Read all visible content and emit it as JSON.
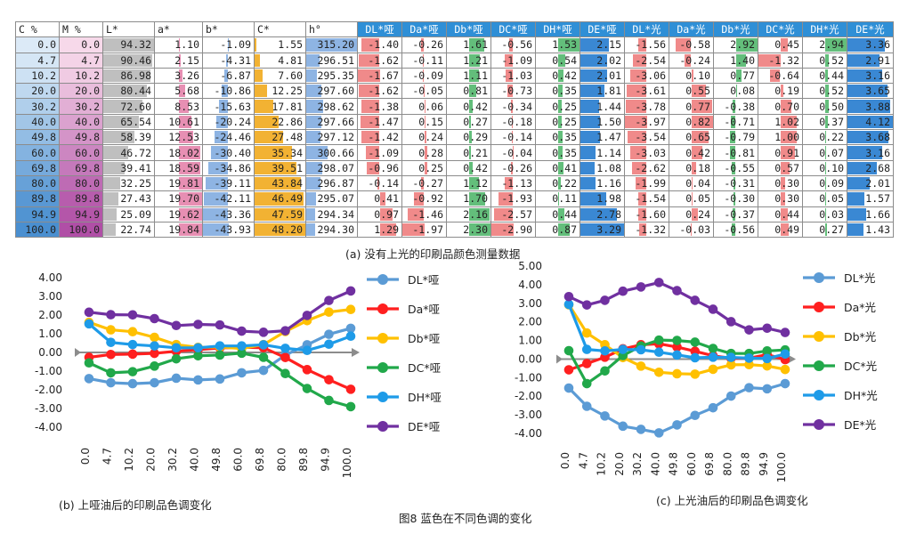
{
  "table": {
    "headers": [
      "C %",
      "M %",
      "L*",
      "a*",
      "b*",
      "C*",
      "h°",
      "DL*哑",
      "Da*哑",
      "Db*哑",
      "DC*哑",
      "DH*哑",
      "DE*哑",
      "DL*光",
      "Da*光",
      "Db*光",
      "DC*光",
      "DH*光",
      "DE*光"
    ],
    "rows": [
      [
        "0.0",
        "0.0",
        "94.32",
        "1.10",
        "-1.09",
        "1.55",
        "315.20",
        "-1.40",
        "-0.26",
        "1.61",
        "-0.56",
        "1.53",
        "2.15",
        "-1.56",
        "-0.58",
        "2.92",
        "0.45",
        "2.94",
        "3.36"
      ],
      [
        "4.7",
        "4.7",
        "90.46",
        "2.15",
        "-4.31",
        "4.81",
        "296.51",
        "-1.62",
        "-0.11",
        "1.21",
        "-1.09",
        "0.54",
        "2.02",
        "-2.54",
        "-0.24",
        "1.40",
        "-1.32",
        "0.52",
        "2.91"
      ],
      [
        "10.2",
        "10.2",
        "86.98",
        "3.26",
        "-6.87",
        "7.60",
        "295.35",
        "-1.67",
        "-0.09",
        "1.11",
        "-1.03",
        "0.42",
        "2.01",
        "-3.06",
        "0.10",
        "0.77",
        "-0.64",
        "0.44",
        "3.16"
      ],
      [
        "20.0",
        "20.0",
        "80.44",
        "5.68",
        "-10.86",
        "12.25",
        "297.60",
        "-1.62",
        "-0.05",
        "0.81",
        "-0.73",
        "0.35",
        "1.81",
        "-3.61",
        "0.55",
        "0.08",
        "0.19",
        "0.52",
        "3.65"
      ],
      [
        "30.2",
        "30.2",
        "72.60",
        "8.53",
        "-15.63",
        "17.81",
        "298.62",
        "-1.38",
        "0.06",
        "0.42",
        "-0.34",
        "0.25",
        "1.44",
        "-3.78",
        "0.77",
        "-0.38",
        "0.70",
        "0.50",
        "3.88"
      ],
      [
        "40.0",
        "40.0",
        "65.54",
        "10.61",
        "-20.24",
        "22.86",
        "297.66",
        "-1.47",
        "0.15",
        "0.27",
        "-0.18",
        "0.25",
        "1.50",
        "-3.97",
        "0.82",
        "-0.71",
        "1.02",
        "0.37",
        "4.12"
      ],
      [
        "49.8",
        "49.8",
        "58.39",
        "12.53",
        "-24.46",
        "27.48",
        "297.12",
        "-1.42",
        "0.24",
        "0.29",
        "-0.14",
        "0.35",
        "1.47",
        "-3.54",
        "0.65",
        "-0.79",
        "1.00",
        "0.22",
        "3.68"
      ],
      [
        "60.0",
        "60.0",
        "46.72",
        "18.02",
        "-30.40",
        "35.34",
        "300.66",
        "-1.09",
        "0.28",
        "0.21",
        "-0.04",
        "0.35",
        "1.14",
        "-3.03",
        "0.42",
        "-0.81",
        "0.91",
        "0.07",
        "3.16"
      ],
      [
        "69.8",
        "69.8",
        "39.41",
        "18.59",
        "-34.86",
        "39.51",
        "298.07",
        "-0.96",
        "0.25",
        "0.42",
        "-0.26",
        "0.41",
        "1.08",
        "-2.62",
        "0.18",
        "-0.55",
        "0.57",
        "0.10",
        "2.68"
      ],
      [
        "80.0",
        "80.0",
        "32.25",
        "19.81",
        "-39.11",
        "43.84",
        "296.87",
        "-0.14",
        "-0.27",
        "1.12",
        "-1.13",
        "0.22",
        "1.16",
        "-1.99",
        "0.04",
        "-0.31",
        "0.30",
        "0.09",
        "2.01"
      ],
      [
        "89.8",
        "89.8",
        "27.43",
        "19.70",
        "-42.11",
        "46.49",
        "295.07",
        "0.41",
        "-0.92",
        "1.70",
        "-1.93",
        "0.11",
        "1.98",
        "-1.54",
        "0.05",
        "-0.30",
        "0.30",
        "0.05",
        "1.57"
      ],
      [
        "94.9",
        "94.9",
        "25.09",
        "19.62",
        "-43.36",
        "47.59",
        "294.34",
        "0.97",
        "-1.46",
        "2.16",
        "-2.57",
        "0.44",
        "2.78",
        "-1.60",
        "0.24",
        "-0.37",
        "0.44",
        "0.03",
        "1.66"
      ],
      [
        "100.0",
        "100.0",
        "22.74",
        "19.84",
        "-43.93",
        "48.20",
        "294.30",
        "1.29",
        "-1.97",
        "2.30",
        "-2.90",
        "0.87",
        "3.29",
        "-1.32",
        "-0.03",
        "-0.56",
        "0.49",
        "0.27",
        "1.43"
      ]
    ]
  },
  "captions": {
    "table": "(a) 没有上光的印刷品颜色测量数据",
    "chart_b": "(b) 上哑油后的印刷品色调变化",
    "chart_c": "(c) 上光油后的印刷品色调变化",
    "figure": "图8 蓝色在不同色调的变化"
  },
  "colors": {
    "header_blue": "#2f8fd6",
    "bar_pink": "#e78fb3",
    "bar_gray": "#bfbfbf",
    "bar_blue": "#8eb4e3",
    "bar_orange": "#f2b233",
    "bar_red": "#f08a8a",
    "bar_green": "#63be7b",
    "bar_dblue": "#3a88d3",
    "cell_blue_light": "#dceaf7",
    "cell_blue_dark": "#4a8fd0",
    "cell_pink_light": "#f7d9ea",
    "cell_pink_dark": "#b04fa6",
    "DL": "#5b9bd5",
    "Da": "#ff1f1f",
    "Db": "#ffc000",
    "DC": "#21a84a",
    "DH": "#1e9be8",
    "DE": "#7030a0"
  },
  "chart_data": [
    {
      "type": "line",
      "x": [
        "0.0",
        "4.7",
        "10.2",
        "20.0",
        "30.2",
        "40.0",
        "49.8",
        "60.0",
        "69.8",
        "80.0",
        "89.8",
        "94.9",
        "100.0"
      ],
      "ylim": [
        -4,
        4
      ],
      "yticks": [
        -4,
        -3,
        -2,
        -1,
        0,
        1,
        2,
        3,
        4
      ],
      "ytick_labels": [
        "-4.00",
        "-3.00",
        "-2.00",
        "-1.00",
        "0.00",
        "1.00",
        "2.00",
        "3.00",
        "4.00"
      ],
      "legend_position": "right",
      "series": [
        {
          "name": "DL*哑",
          "color": "#5b9bd5",
          "values": [
            -1.4,
            -1.62,
            -1.67,
            -1.62,
            -1.38,
            -1.47,
            -1.42,
            -1.09,
            -0.96,
            -0.14,
            0.41,
            0.97,
            1.29
          ]
        },
        {
          "name": "Da*哑",
          "color": "#ff1f1f",
          "values": [
            -0.26,
            -0.11,
            -0.09,
            -0.05,
            0.06,
            0.15,
            0.24,
            0.28,
            0.25,
            -0.27,
            -0.92,
            -1.46,
            -1.97
          ]
        },
        {
          "name": "Db*哑",
          "color": "#ffc000",
          "values": [
            1.61,
            1.21,
            1.11,
            0.81,
            0.42,
            0.27,
            0.29,
            0.21,
            0.42,
            1.12,
            1.7,
            2.16,
            2.3
          ]
        },
        {
          "name": "DC*哑",
          "color": "#21a84a",
          "values": [
            -0.56,
            -1.09,
            -1.03,
            -0.73,
            -0.34,
            -0.18,
            -0.14,
            -0.04,
            -0.26,
            -1.13,
            -1.93,
            -2.57,
            -2.9
          ]
        },
        {
          "name": "DH*哑",
          "color": "#1e9be8",
          "values": [
            1.53,
            0.54,
            0.42,
            0.35,
            0.25,
            0.25,
            0.35,
            0.35,
            0.41,
            0.22,
            0.11,
            0.44,
            0.87
          ]
        },
        {
          "name": "DE*哑",
          "color": "#7030a0",
          "values": [
            2.15,
            2.02,
            2.01,
            1.81,
            1.44,
            1.5,
            1.47,
            1.14,
            1.08,
            1.16,
            1.98,
            2.78,
            3.29
          ]
        }
      ]
    },
    {
      "type": "line",
      "x": [
        "0.0",
        "4.7",
        "10.2",
        "20.0",
        "30.2",
        "40.0",
        "49.8",
        "60.0",
        "69.8",
        "80.0",
        "89.8",
        "94.9",
        "100.0"
      ],
      "ylim": [
        -4,
        5
      ],
      "yticks": [
        -4,
        -3,
        -2,
        -1,
        0,
        1,
        2,
        3,
        4,
        5
      ],
      "ytick_labels": [
        "-4.00",
        "-3.00",
        "-2.00",
        "-1.00",
        "0.00",
        "1.00",
        "2.00",
        "3.00",
        "4.00",
        "5.00"
      ],
      "legend_position": "right",
      "series": [
        {
          "name": "DL*光",
          "color": "#5b9bd5",
          "values": [
            -1.56,
            -2.54,
            -3.06,
            -3.61,
            -3.78,
            -3.97,
            -3.54,
            -3.03,
            -2.62,
            -1.99,
            -1.54,
            -1.6,
            -1.32
          ]
        },
        {
          "name": "Da*光",
          "color": "#ff1f1f",
          "values": [
            -0.58,
            -0.24,
            0.1,
            0.55,
            0.77,
            0.82,
            0.65,
            0.42,
            0.18,
            0.04,
            0.05,
            0.24,
            -0.03
          ]
        },
        {
          "name": "Db*光",
          "color": "#ffc000",
          "values": [
            2.92,
            1.4,
            0.77,
            0.08,
            -0.38,
            -0.71,
            -0.79,
            -0.81,
            -0.55,
            -0.31,
            -0.3,
            -0.37,
            -0.56
          ]
        },
        {
          "name": "DC*光",
          "color": "#21a84a",
          "values": [
            0.45,
            -1.32,
            -0.64,
            0.19,
            0.7,
            1.02,
            1.0,
            0.91,
            0.57,
            0.3,
            0.3,
            0.44,
            0.49
          ]
        },
        {
          "name": "DH*光",
          "color": "#1e9be8",
          "values": [
            2.94,
            0.52,
            0.44,
            0.52,
            0.5,
            0.37,
            0.22,
            0.07,
            0.1,
            0.09,
            0.05,
            0.03,
            0.27
          ]
        },
        {
          "name": "DE*光",
          "color": "#7030a0",
          "values": [
            3.36,
            2.91,
            3.16,
            3.65,
            3.88,
            4.12,
            3.68,
            3.16,
            2.68,
            2.01,
            1.57,
            1.66,
            1.43
          ]
        }
      ]
    }
  ]
}
